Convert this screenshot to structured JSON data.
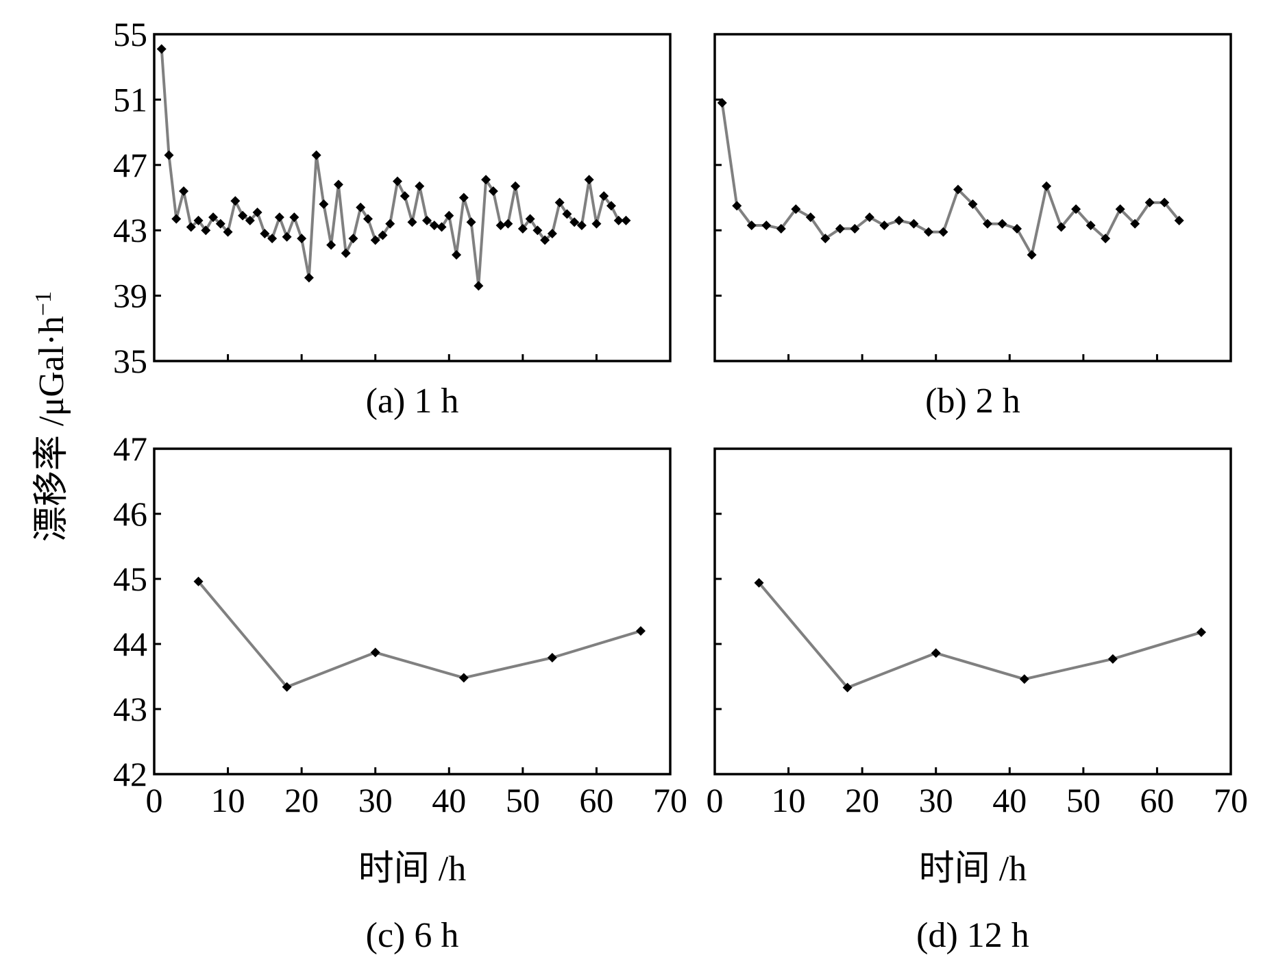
{
  "figure": {
    "ylabel": "漂移率 /μGal·h",
    "ylabel_superscript": "−1",
    "xlabel": "时间 /h",
    "line_color": "#808080",
    "marker_color": "#000000",
    "marker_shape": "diamond"
  },
  "chart_data": [
    {
      "type": "line",
      "caption": "(a) 1 h",
      "xlim": [
        0,
        70
      ],
      "ylim": [
        35,
        55
      ],
      "yticks": [
        35,
        39,
        43,
        47,
        51,
        55
      ],
      "xticks": [
        0,
        10,
        20,
        30,
        40,
        50,
        60,
        70
      ],
      "show_x_tick_labels": false,
      "show_y_tick_labels": true,
      "show_xlabel": false,
      "x": [
        1,
        2,
        3,
        4,
        5,
        6,
        7,
        8,
        9,
        10,
        11,
        12,
        13,
        14,
        15,
        16,
        17,
        18,
        19,
        20,
        21,
        22,
        23,
        24,
        25,
        26,
        27,
        28,
        29,
        30,
        31,
        32,
        33,
        34,
        35,
        36,
        37,
        38,
        39,
        40,
        41,
        42,
        43,
        44,
        45,
        46,
        47,
        48,
        49,
        50,
        51,
        52,
        53,
        54,
        55,
        56,
        57,
        58,
        59,
        60,
        61,
        62,
        63,
        64
      ],
      "y": [
        54.1,
        47.6,
        43.7,
        45.4,
        43.2,
        43.6,
        43.0,
        43.8,
        43.4,
        42.9,
        44.8,
        43.9,
        43.6,
        44.1,
        42.8,
        42.5,
        43.8,
        42.6,
        43.8,
        42.5,
        40.1,
        47.6,
        44.6,
        42.1,
        45.8,
        41.6,
        42.5,
        44.4,
        43.7,
        42.4,
        42.7,
        43.4,
        46.0,
        45.1,
        43.5,
        45.7,
        43.6,
        43.3,
        43.2,
        43.9,
        41.5,
        45.0,
        43.5,
        39.6,
        46.1,
        45.4,
        43.3,
        43.4,
        45.7,
        43.1,
        43.7,
        43.0,
        42.4,
        42.8,
        44.7,
        44.0,
        43.5,
        43.3,
        46.1,
        43.4,
        45.1,
        44.5,
        43.6,
        43.6
      ]
    },
    {
      "type": "line",
      "caption": "(b) 2 h",
      "xlim": [
        0,
        70
      ],
      "ylim": [
        35,
        55
      ],
      "yticks": [
        35,
        39,
        43,
        47,
        51,
        55
      ],
      "xticks": [
        0,
        10,
        20,
        30,
        40,
        50,
        60,
        70
      ],
      "show_x_tick_labels": false,
      "show_y_tick_labels": false,
      "show_xlabel": false,
      "x": [
        1,
        3,
        5,
        7,
        9,
        11,
        13,
        15,
        17,
        19,
        21,
        23,
        25,
        27,
        29,
        31,
        33,
        35,
        37,
        39,
        41,
        43,
        45,
        47,
        49,
        51,
        53,
        55,
        57,
        59,
        61,
        63
      ],
      "y": [
        50.8,
        44.5,
        43.3,
        43.3,
        43.1,
        44.3,
        43.8,
        42.5,
        43.1,
        43.1,
        43.8,
        43.3,
        43.6,
        43.4,
        42.9,
        42.9,
        45.5,
        44.6,
        43.4,
        43.4,
        43.1,
        41.5,
        45.7,
        43.2,
        44.3,
        43.3,
        42.5,
        44.3,
        43.4,
        44.7,
        44.7,
        43.6
      ]
    },
    {
      "type": "line",
      "caption": "(c) 6 h",
      "xlim": [
        0,
        70
      ],
      "ylim": [
        42,
        47
      ],
      "yticks": [
        42,
        43,
        44,
        45,
        46,
        47
      ],
      "xticks": [
        0,
        10,
        20,
        30,
        40,
        50,
        60,
        70
      ],
      "show_x_tick_labels": true,
      "show_y_tick_labels": true,
      "show_xlabel": true,
      "x": [
        6,
        18,
        30,
        42,
        54,
        66
      ],
      "y": [
        44.96,
        43.34,
        43.87,
        43.48,
        43.79,
        44.2
      ]
    },
    {
      "type": "line",
      "caption": "(d) 12 h",
      "xlim": [
        0,
        70
      ],
      "ylim": [
        42,
        47
      ],
      "yticks": [
        42,
        43,
        44,
        45,
        46,
        47
      ],
      "xticks": [
        0,
        10,
        20,
        30,
        40,
        50,
        60,
        70
      ],
      "show_x_tick_labels": true,
      "show_y_tick_labels": false,
      "show_xlabel": true,
      "x": [
        6,
        18,
        30,
        42,
        54,
        66
      ],
      "y": [
        44.94,
        43.33,
        43.86,
        43.46,
        43.77,
        44.18
      ]
    }
  ]
}
